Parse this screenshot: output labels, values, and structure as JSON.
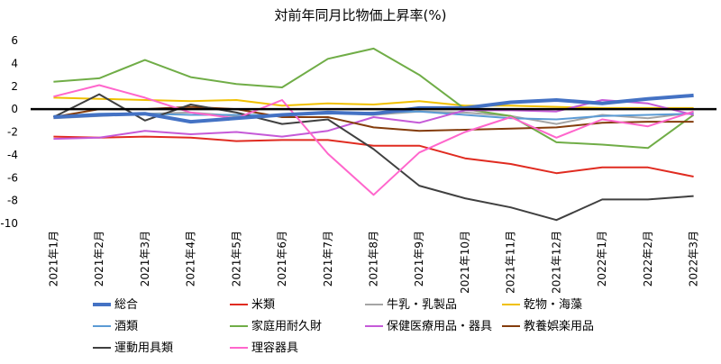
{
  "chart_data": {
    "type": "line",
    "title": "対前年同月比物価上昇率(%)",
    "categories": [
      "2021年1月",
      "2021年2月",
      "2021年3月",
      "2021年4月",
      "2021年5月",
      "2021年6月",
      "2021年7月",
      "2021年8月",
      "2021年9月",
      "2021年10月",
      "2021年11月",
      "2021年12月",
      "2022年1月",
      "2022年2月",
      "2022年3月"
    ],
    "yticks": [
      "6",
      "4",
      "2",
      "0",
      "-2",
      "-4",
      "-6",
      "-8",
      "-10"
    ],
    "ylim": [
      -10,
      6
    ],
    "grid": "none",
    "legend_position": "bottom",
    "zero_line_color": "#000000",
    "series": [
      {
        "name": "総合",
        "color": "#4472c4",
        "width": 4,
        "values": [
          -0.7,
          -0.5,
          -0.4,
          -1.1,
          -0.8,
          -0.5,
          -0.3,
          -0.4,
          0.1,
          0.1,
          0.6,
          0.8,
          0.5,
          0.9,
          1.2
        ]
      },
      {
        "name": "米類",
        "color": "#e02b20",
        "width": 2,
        "values": [
          -2.4,
          -2.5,
          -2.4,
          -2.5,
          -2.8,
          -2.7,
          -2.7,
          -3.2,
          -3.2,
          -4.3,
          -4.8,
          -5.6,
          -5.1,
          -5.1,
          -5.9
        ]
      },
      {
        "name": "牛乳・乳製品",
        "color": "#a5a5a5",
        "width": 2,
        "values": [
          -0.8,
          -0.6,
          -0.4,
          -0.3,
          -0.6,
          -0.6,
          -0.3,
          -0.5,
          -0.2,
          -0.3,
          -0.6,
          -1.3,
          -0.5,
          -0.8,
          -0.3
        ]
      },
      {
        "name": "乾物・海藻",
        "color": "#f0c000",
        "width": 2,
        "values": [
          1.0,
          0.9,
          0.8,
          0.7,
          0.8,
          0.3,
          0.5,
          0.4,
          0.7,
          0.3,
          0.3,
          0.2,
          0.1,
          0.1,
          0.1
        ]
      },
      {
        "name": "酒類",
        "color": "#5b9bd5",
        "width": 2,
        "values": [
          -0.6,
          -0.4,
          -0.4,
          -0.5,
          -0.5,
          -0.5,
          -0.4,
          -0.3,
          -0.2,
          -0.5,
          -0.8,
          -0.9,
          -0.6,
          -0.5,
          -0.4
        ]
      },
      {
        "name": "家庭用耐久財",
        "color": "#70ad47",
        "width": 2,
        "values": [
          2.4,
          2.7,
          4.3,
          2.8,
          2.2,
          1.9,
          4.4,
          5.3,
          3.0,
          0.0,
          -0.6,
          -2.9,
          -3.1,
          -3.4,
          -0.5
        ]
      },
      {
        "name": "保健医療用品・器具",
        "color": "#c55ad8",
        "width": 2,
        "values": [
          -2.6,
          -2.5,
          -1.9,
          -2.2,
          -2.0,
          -2.4,
          -1.9,
          -0.7,
          -1.2,
          -0.1,
          -0.1,
          -0.2,
          0.8,
          0.5,
          -0.5
        ]
      },
      {
        "name": "教養娯楽用品",
        "color": "#843c0c",
        "width": 2,
        "values": [
          -0.7,
          0.0,
          0.0,
          0.2,
          0.0,
          -0.7,
          -0.7,
          -1.6,
          -1.9,
          -1.8,
          -1.7,
          -1.6,
          -1.2,
          -1.1,
          -1.1
        ]
      },
      {
        "name": "運動用具類",
        "color": "#404040",
        "width": 2,
        "values": [
          -0.7,
          1.3,
          -1.0,
          0.4,
          -0.3,
          -1.3,
          -0.9,
          -3.5,
          -6.7,
          -7.8,
          -8.6,
          -9.7,
          -7.9,
          -7.9,
          -7.6
        ]
      },
      {
        "name": "理容器具",
        "color": "#ff66cc",
        "width": 2,
        "values": [
          1.1,
          2.1,
          1.0,
          -0.3,
          -0.8,
          0.8,
          -3.9,
          -7.5,
          -3.8,
          -2.0,
          -0.7,
          -2.5,
          -0.9,
          -1.5,
          -0.2
        ]
      }
    ]
  }
}
